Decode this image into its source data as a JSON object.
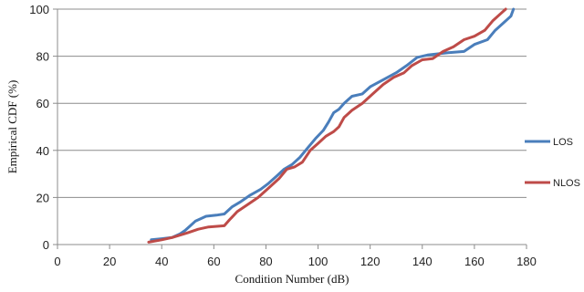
{
  "chart_data": {
    "type": "line",
    "title": "",
    "xlabel": "Condition Number (dB)",
    "ylabel": "Empirical CDF (%)",
    "xlim": [
      0,
      180
    ],
    "ylim": [
      0,
      100
    ],
    "xticks": [
      0,
      20,
      40,
      60,
      80,
      100,
      120,
      140,
      160,
      180
    ],
    "yticks": [
      0,
      20,
      40,
      60,
      80,
      100
    ],
    "grid": "horizontal",
    "legend_position": "right",
    "series": [
      {
        "name": "LOS",
        "color": "#4a7ebb",
        "points": [
          [
            36,
            2
          ],
          [
            40,
            2.5
          ],
          [
            44,
            3
          ],
          [
            47,
            4.5
          ],
          [
            49,
            6
          ],
          [
            51,
            8
          ],
          [
            53,
            10
          ],
          [
            55,
            11
          ],
          [
            57,
            12
          ],
          [
            61,
            12.5
          ],
          [
            64,
            13
          ],
          [
            67,
            16
          ],
          [
            70,
            18
          ],
          [
            74,
            21
          ],
          [
            78,
            23.5
          ],
          [
            81,
            26
          ],
          [
            84,
            29
          ],
          [
            87,
            32
          ],
          [
            90,
            34
          ],
          [
            93,
            37
          ],
          [
            96,
            41
          ],
          [
            99,
            45
          ],
          [
            102,
            48.5
          ],
          [
            104,
            52
          ],
          [
            106,
            56
          ],
          [
            108,
            57.5
          ],
          [
            110,
            60
          ],
          [
            113,
            63
          ],
          [
            117,
            64
          ],
          [
            120,
            67
          ],
          [
            125,
            70
          ],
          [
            130,
            73
          ],
          [
            134,
            76
          ],
          [
            138,
            79.5
          ],
          [
            142,
            80.5
          ],
          [
            146,
            81
          ],
          [
            150,
            81.5
          ],
          [
            156,
            82
          ],
          [
            160,
            85
          ],
          [
            165,
            87
          ],
          [
            168,
            91
          ],
          [
            171,
            94
          ],
          [
            174,
            97
          ],
          [
            175,
            100
          ]
        ]
      },
      {
        "name": "NLOS",
        "color": "#be4b48",
        "points": [
          [
            35,
            1
          ],
          [
            40,
            2
          ],
          [
            44,
            3
          ],
          [
            47,
            4
          ],
          [
            50,
            5
          ],
          [
            54,
            6.5
          ],
          [
            58,
            7.5
          ],
          [
            64,
            8
          ],
          [
            66,
            10.5
          ],
          [
            69,
            14
          ],
          [
            73,
            17
          ],
          [
            77,
            20
          ],
          [
            81,
            24
          ],
          [
            85,
            28
          ],
          [
            88,
            32
          ],
          [
            91,
            33
          ],
          [
            94,
            35
          ],
          [
            97,
            40
          ],
          [
            100,
            43
          ],
          [
            103,
            46
          ],
          [
            106,
            48
          ],
          [
            108,
            50
          ],
          [
            110,
            54
          ],
          [
            113,
            57
          ],
          [
            117,
            60
          ],
          [
            121,
            64
          ],
          [
            125,
            68
          ],
          [
            129,
            71
          ],
          [
            133,
            73
          ],
          [
            136,
            76
          ],
          [
            140,
            78.5
          ],
          [
            144,
            79
          ],
          [
            148,
            82
          ],
          [
            152,
            84
          ],
          [
            156,
            87
          ],
          [
            160,
            88.5
          ],
          [
            164,
            91
          ],
          [
            167,
            95
          ],
          [
            170,
            98
          ],
          [
            172,
            100
          ]
        ]
      }
    ]
  }
}
